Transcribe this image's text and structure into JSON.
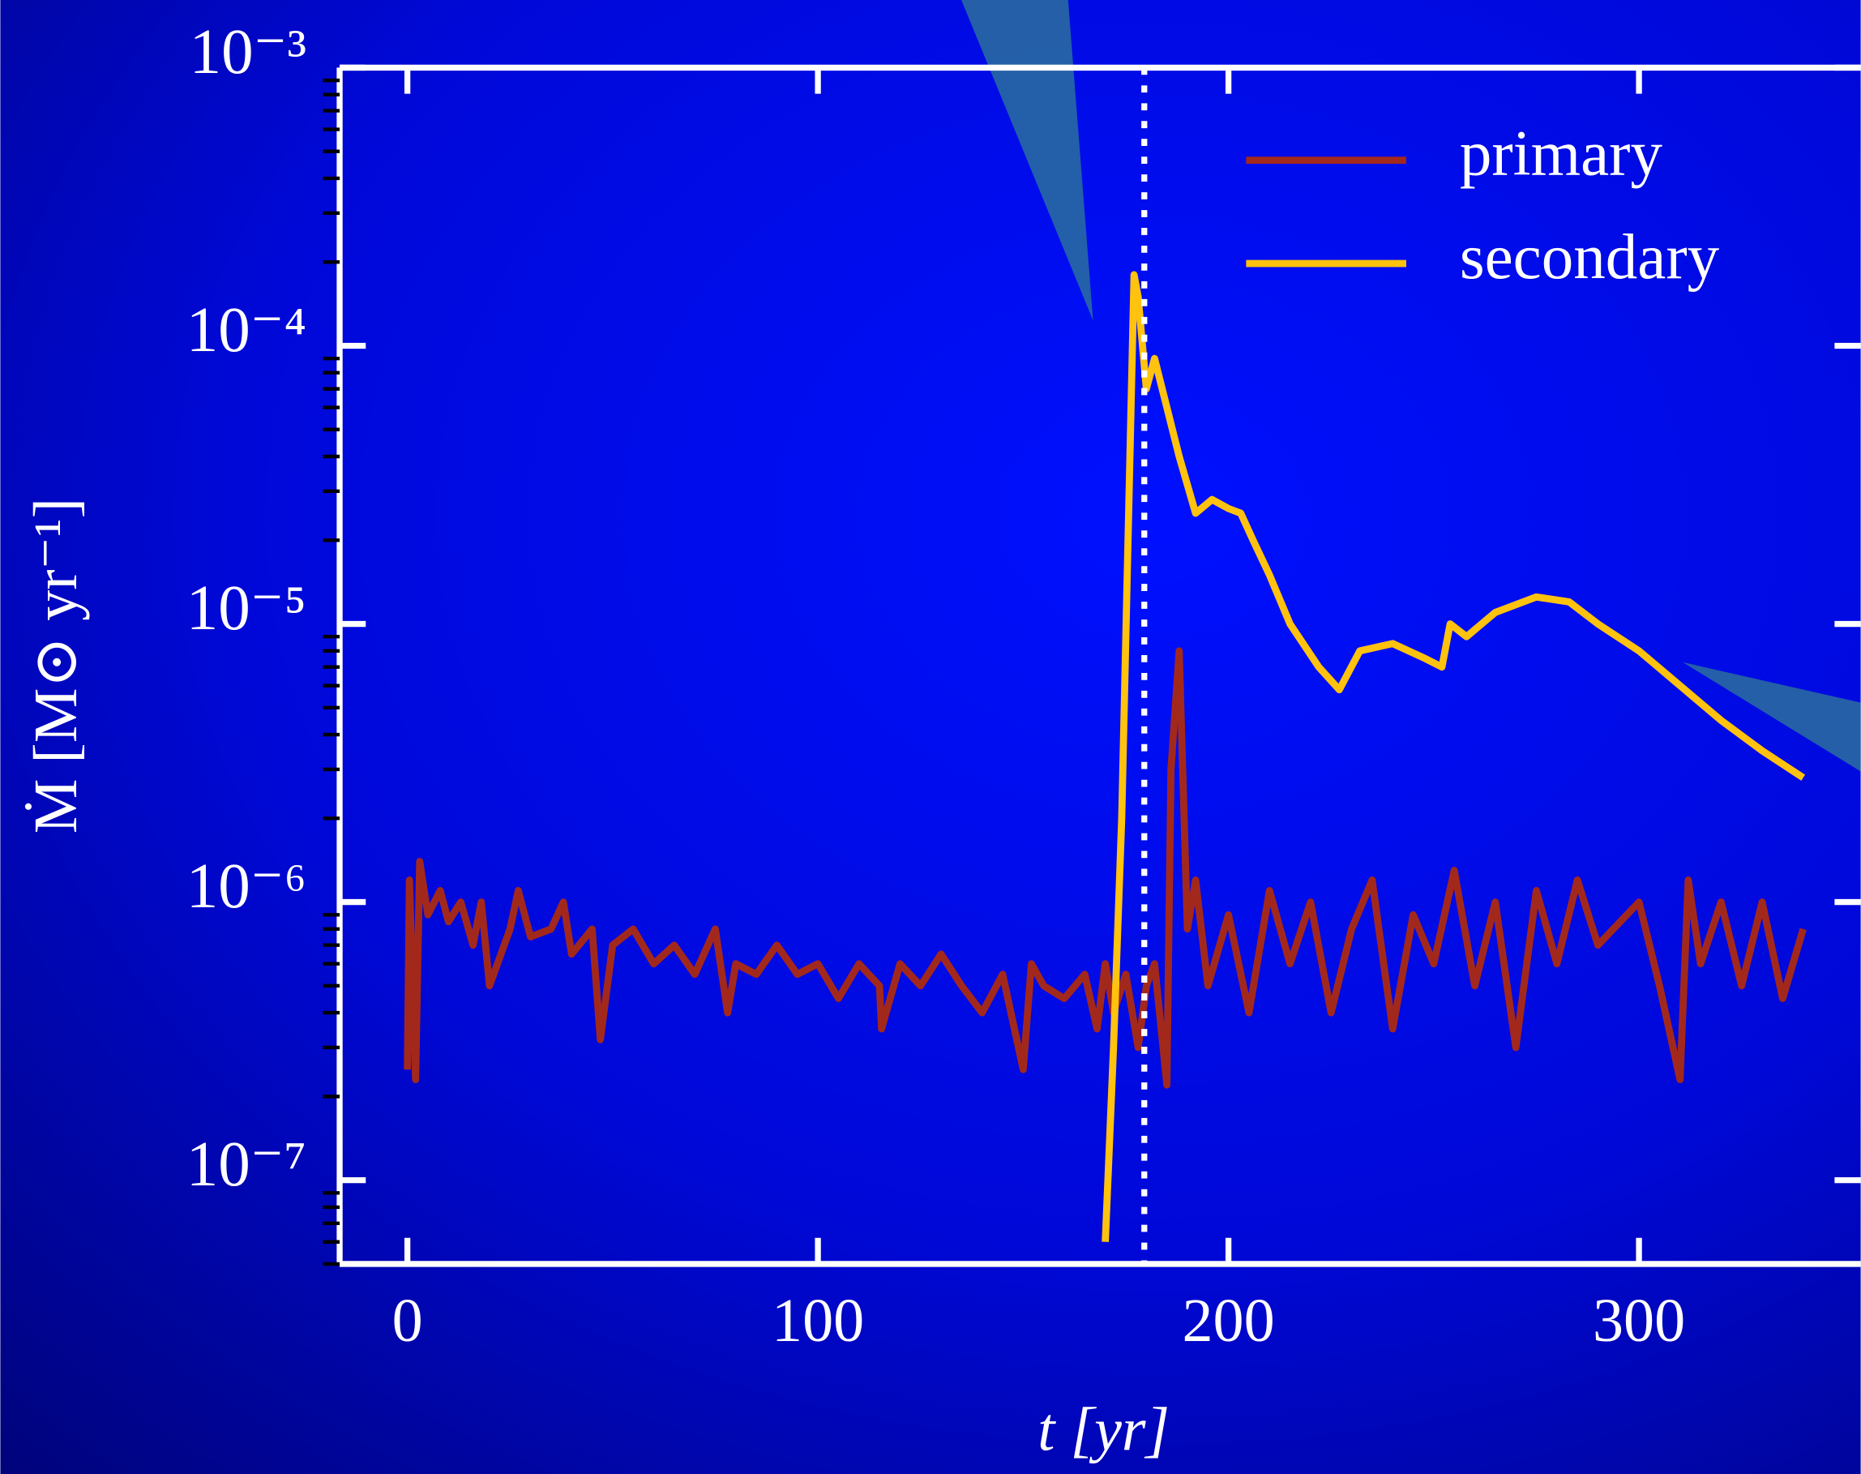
{
  "chart_data": {
    "type": "line",
    "xlabel": "t [yr]",
    "ylabel": "Ṁ [M⊙ yr⁻¹]",
    "xlim": [
      -16.5,
      354
    ],
    "xticks": [
      0,
      100,
      200,
      300
    ],
    "ylim": [
      5e-08,
      0.001
    ],
    "yscale": "log",
    "minor_ticks": true,
    "yticks": [
      {
        "value": 0.001,
        "label": "10⁻³"
      },
      {
        "value": 0.0001,
        "label": "10⁻⁴"
      },
      {
        "value": 1e-05,
        "label": "10⁻⁵"
      },
      {
        "value": 1e-06,
        "label": "10⁻⁶"
      },
      {
        "value": 1e-07,
        "label": "10⁻⁷"
      }
    ],
    "vline": 179.5,
    "legend": "upper right",
    "series": [
      {
        "name": "primary",
        "color": "#a3281c",
        "x": [
          0,
          0.5,
          2,
          3,
          5,
          8,
          10,
          13,
          16,
          18,
          20,
          25,
          27,
          30,
          35,
          38,
          40,
          45,
          47,
          50,
          55,
          60,
          65,
          70,
          75,
          78,
          80,
          85,
          90,
          95,
          100,
          105,
          110,
          115,
          115.5,
          120,
          125,
          130,
          135,
          140,
          145,
          150,
          152,
          155,
          160,
          165,
          168,
          170,
          172,
          175,
          178,
          180,
          182,
          185,
          186,
          188,
          190,
          192,
          195,
          200,
          205,
          210,
          215,
          220,
          225,
          230,
          235,
          240,
          245,
          250,
          255,
          260,
          265,
          270,
          275,
          280,
          285,
          290,
          300,
          305,
          310,
          312,
          315,
          320,
          325,
          330,
          335,
          340
        ],
        "values": [
          2.5e-07,
          1.2e-06,
          2.3e-07,
          1.4e-06,
          9e-07,
          1.1e-06,
          8.5e-07,
          1e-06,
          7e-07,
          1e-06,
          5e-07,
          8e-07,
          1.1e-06,
          7.5e-07,
          8e-07,
          1e-06,
          6.5e-07,
          8e-07,
          3.2e-07,
          7e-07,
          8e-07,
          6e-07,
          7e-07,
          5.5e-07,
          8e-07,
          4e-07,
          6e-07,
          5.5e-07,
          7e-07,
          5.5e-07,
          6e-07,
          4.5e-07,
          6e-07,
          5e-07,
          3.5e-07,
          6e-07,
          5e-07,
          6.5e-07,
          5e-07,
          4e-07,
          5.5e-07,
          2.5e-07,
          6e-07,
          5e-07,
          4.5e-07,
          5.5e-07,
          3.5e-07,
          6e-07,
          4e-07,
          5.5e-07,
          3e-07,
          5e-07,
          6e-07,
          2.2e-07,
          3e-06,
          8e-06,
          8e-07,
          1.2e-06,
          5e-07,
          9e-07,
          4e-07,
          1.1e-06,
          6e-07,
          1e-06,
          4e-07,
          8e-07,
          1.2e-06,
          3.5e-07,
          9e-07,
          6e-07,
          1.3e-06,
          5e-07,
          1e-06,
          3e-07,
          1.1e-06,
          6e-07,
          1.2e-06,
          7e-07,
          1e-06,
          5e-07,
          2.3e-07,
          1.2e-06,
          6e-07,
          1e-06,
          5e-07,
          1e-06,
          4.5e-07,
          8e-07
        ]
      },
      {
        "name": "secondary",
        "color": "#ffc20e",
        "x": [
          170,
          172,
          174,
          176,
          177,
          178,
          180,
          182,
          185,
          188,
          192,
          196,
          200,
          203,
          206,
          210,
          215,
          222,
          227,
          232,
          240,
          248,
          252,
          254,
          258,
          265,
          275,
          283,
          290,
          300,
          310,
          320,
          330,
          340
        ],
        "values": [
          6e-08,
          3e-07,
          2e-06,
          4e-05,
          0.00018,
          0.00015,
          7e-05,
          9e-05,
          6e-05,
          4e-05,
          2.5e-05,
          2.8e-05,
          2.6e-05,
          2.5e-05,
          2e-05,
          1.5e-05,
          1e-05,
          7e-06,
          5.8e-06,
          8e-06,
          8.5e-06,
          7.5e-06,
          7e-06,
          1e-05,
          9e-06,
          1.1e-05,
          1.25e-05,
          1.2e-05,
          1e-05,
          8e-06,
          6e-06,
          4.5e-06,
          3.5e-06,
          2.8e-06
        ]
      }
    ]
  }
}
